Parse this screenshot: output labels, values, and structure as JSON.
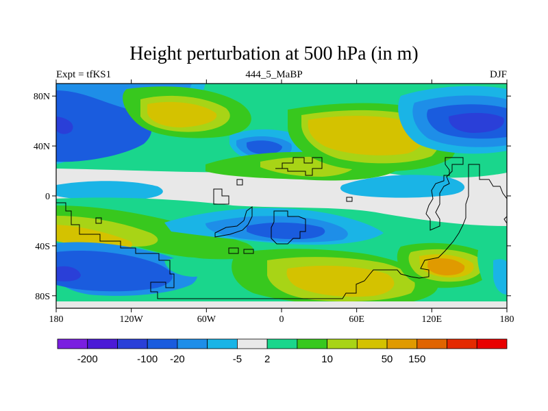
{
  "figure": {
    "title": "Height perturbation at 500 hPa (in m)",
    "left_label": "Expt = tfKS1",
    "center_label": "444_5_MaBP",
    "right_label": "DJF"
  },
  "axes": {
    "lon_range": [
      -180,
      180
    ],
    "lat_range": [
      -90,
      90
    ],
    "x_ticks": [
      {
        "value": -180,
        "label": "180"
      },
      {
        "value": -120,
        "label": "120W"
      },
      {
        "value": -60,
        "label": "60W"
      },
      {
        "value": 0,
        "label": "0"
      },
      {
        "value": 60,
        "label": "60E"
      },
      {
        "value": 120,
        "label": "120E"
      },
      {
        "value": 180,
        "label": "180"
      }
    ],
    "y_ticks": [
      {
        "value": 80,
        "label": "80N"
      },
      {
        "value": 40,
        "label": "40N"
      },
      {
        "value": 0,
        "label": "0"
      },
      {
        "value": -40,
        "label": "40S"
      },
      {
        "value": -80,
        "label": "80S"
      }
    ]
  },
  "colorbar": {
    "colors": [
      "#7a1fe0",
      "#4b1ad6",
      "#2a3fd8",
      "#1a5cde",
      "#1e8ee8",
      "#1ab4e6",
      "#e8e8e8",
      "#1ad68c",
      "#38c81e",
      "#a8d416",
      "#d4c200",
      "#e09a00",
      "#e06400",
      "#e42a00",
      "#e80000"
    ],
    "labels": [
      {
        "boundary": 1,
        "text": "-200"
      },
      {
        "boundary": 3,
        "text": "-100"
      },
      {
        "boundary": 4,
        "text": "-20"
      },
      {
        "boundary": 6,
        "text": "-5"
      },
      {
        "boundary": 7,
        "text": "2"
      },
      {
        "boundary": 9,
        "text": "10"
      },
      {
        "boundary": 11,
        "text": "50"
      },
      {
        "boundary": 12,
        "text": "150"
      }
    ]
  },
  "palette": {
    "dblue": "#2a3fd8",
    "mblue": "#1a5cde",
    "lblue": "#1e8ee8",
    "cyan": "#1ab4e6",
    "grey": "#e8e8e8",
    "teal": "#1ad68c",
    "green": "#38c81e",
    "lime": "#a8d416",
    "olive": "#d4c200",
    "orange": "#e09a00"
  }
}
